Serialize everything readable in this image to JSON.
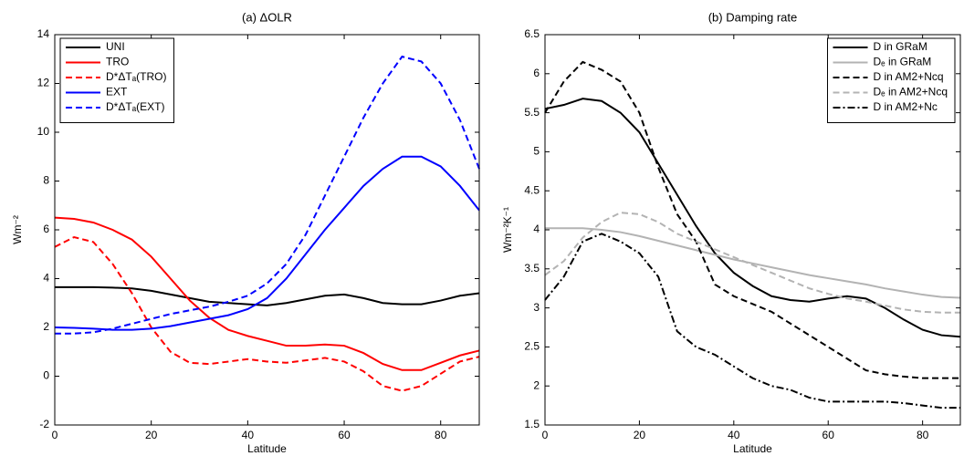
{
  "chart_data": [
    {
      "type": "line",
      "title": "(a) ΔOLR",
      "xlabel": "Latitude",
      "ylabel": "Wm⁻²",
      "x": [
        0,
        4,
        8,
        12,
        16,
        20,
        24,
        28,
        32,
        36,
        40,
        44,
        48,
        52,
        56,
        60,
        64,
        68,
        72,
        76,
        80,
        84,
        88
      ],
      "xlim": [
        0,
        88
      ],
      "xticks": [
        0,
        20,
        40,
        60,
        80
      ],
      "ylim": [
        -2,
        14
      ],
      "yticks": [
        -2,
        0,
        2,
        4,
        6,
        8,
        10,
        12,
        14
      ],
      "grid": false,
      "legend_loc": "upper left",
      "series": [
        {
          "name": "UNI",
          "color": "#000000",
          "linestyle": "solid",
          "values": [
            3.65,
            3.65,
            3.65,
            3.63,
            3.6,
            3.5,
            3.35,
            3.2,
            3.05,
            3.0,
            2.95,
            2.9,
            3.0,
            3.15,
            3.3,
            3.35,
            3.2,
            3.0,
            2.95,
            2.95,
            3.1,
            3.3,
            3.4
          ]
        },
        {
          "name": "TRO",
          "color": "#ff0000",
          "linestyle": "solid",
          "values": [
            6.5,
            6.45,
            6.3,
            6.0,
            5.6,
            4.9,
            4.0,
            3.1,
            2.4,
            1.9,
            1.65,
            1.45,
            1.25,
            1.25,
            1.3,
            1.25,
            0.95,
            0.5,
            0.25,
            0.25,
            0.55,
            0.85,
            1.05
          ]
        },
        {
          "name": "D*ΔTₐ(TRO)",
          "color": "#ff0000",
          "linestyle": "dashed",
          "values": [
            5.3,
            5.7,
            5.5,
            4.6,
            3.4,
            2.0,
            1.0,
            0.55,
            0.5,
            0.6,
            0.7,
            0.6,
            0.55,
            0.65,
            0.75,
            0.6,
            0.2,
            -0.4,
            -0.6,
            -0.4,
            0.1,
            0.6,
            0.8
          ]
        },
        {
          "name": "EXT",
          "color": "#0000ff",
          "linestyle": "solid",
          "values": [
            2.0,
            1.98,
            1.95,
            1.9,
            1.9,
            1.95,
            2.05,
            2.2,
            2.35,
            2.5,
            2.75,
            3.2,
            4.0,
            5.0,
            6.0,
            6.9,
            7.8,
            8.5,
            9.0,
            9.0,
            8.6,
            7.8,
            6.8
          ]
        },
        {
          "name": "D*ΔTₐ(EXT)",
          "color": "#0000ff",
          "linestyle": "dashed",
          "values": [
            1.75,
            1.75,
            1.8,
            1.95,
            2.15,
            2.35,
            2.55,
            2.7,
            2.85,
            3.05,
            3.3,
            3.8,
            4.6,
            5.8,
            7.4,
            9.0,
            10.6,
            12.0,
            13.1,
            12.9,
            12.0,
            10.5,
            8.5
          ]
        }
      ]
    },
    {
      "type": "line",
      "title": "(b) Damping rate",
      "xlabel": "Latitude",
      "ylabel": "Wm⁻²K⁻¹",
      "x": [
        0,
        4,
        8,
        12,
        16,
        20,
        24,
        28,
        32,
        36,
        40,
        44,
        48,
        52,
        56,
        60,
        64,
        68,
        72,
        76,
        80,
        84,
        88
      ],
      "xlim": [
        0,
        88
      ],
      "xticks": [
        0,
        20,
        40,
        60,
        80
      ],
      "ylim": [
        1.5,
        6.5
      ],
      "yticks": [
        1.5,
        2,
        2.5,
        3,
        3.5,
        4,
        4.5,
        5,
        5.5,
        6,
        6.5
      ],
      "grid": false,
      "legend_loc": "upper right",
      "series": [
        {
          "name": "D in GRaM",
          "color": "#000000",
          "linestyle": "solid",
          "values": [
            5.55,
            5.6,
            5.68,
            5.65,
            5.5,
            5.25,
            4.85,
            4.45,
            4.05,
            3.7,
            3.45,
            3.28,
            3.15,
            3.1,
            3.08,
            3.12,
            3.15,
            3.12,
            3.0,
            2.85,
            2.72,
            2.65,
            2.63
          ]
        },
        {
          "name": "Dₑ in GRaM",
          "color": "#b3b3b3",
          "linestyle": "solid",
          "values": [
            4.02,
            4.02,
            4.02,
            4.0,
            3.97,
            3.92,
            3.86,
            3.8,
            3.74,
            3.68,
            3.62,
            3.57,
            3.52,
            3.47,
            3.42,
            3.38,
            3.34,
            3.3,
            3.25,
            3.21,
            3.17,
            3.14,
            3.13
          ]
        },
        {
          "name": "D in AM2+Ncq",
          "color": "#000000",
          "linestyle": "dashed",
          "values": [
            5.5,
            5.9,
            6.15,
            6.05,
            5.9,
            5.5,
            4.8,
            4.2,
            3.85,
            3.3,
            3.15,
            3.05,
            2.95,
            2.8,
            2.65,
            2.5,
            2.35,
            2.2,
            2.15,
            2.12,
            2.1,
            2.1,
            2.1
          ]
        },
        {
          "name": "Dₑ in AM2+Ncq",
          "color": "#b3b3b3",
          "linestyle": "dashed",
          "values": [
            3.42,
            3.6,
            3.9,
            4.1,
            4.22,
            4.2,
            4.1,
            3.95,
            3.85,
            3.75,
            3.65,
            3.55,
            3.45,
            3.35,
            3.25,
            3.18,
            3.12,
            3.08,
            3.03,
            2.98,
            2.95,
            2.94,
            2.94
          ]
        },
        {
          "name": "D in AM2+Nc",
          "color": "#000000",
          "linestyle": "dashdot",
          "values": [
            3.1,
            3.4,
            3.85,
            3.95,
            3.85,
            3.7,
            3.4,
            2.7,
            2.5,
            2.4,
            2.25,
            2.1,
            2.0,
            1.95,
            1.85,
            1.8,
            1.8,
            1.8,
            1.8,
            1.78,
            1.75,
            1.72,
            1.72
          ]
        }
      ]
    }
  ]
}
